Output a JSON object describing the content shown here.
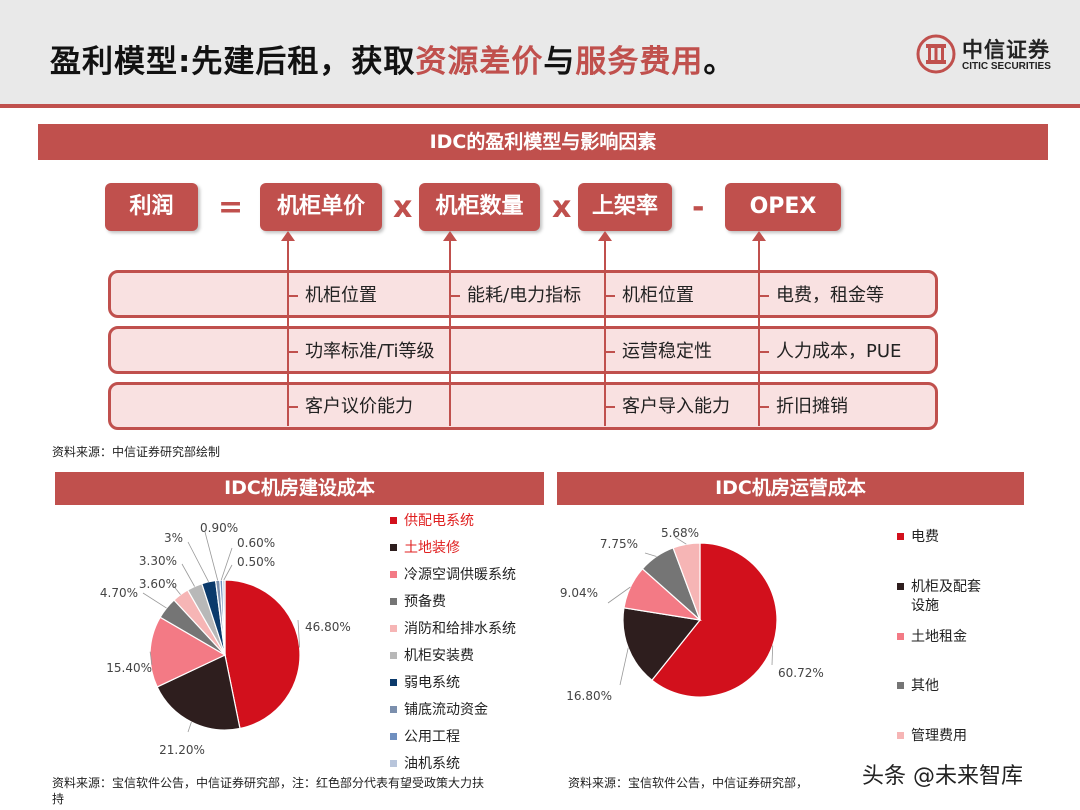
{
  "header": {
    "title_part1": "盈利模型:先建后租，获取",
    "title_hl1": "资源差价",
    "title_part2": "与",
    "title_hl2": "服务费用",
    "title_part3": "。",
    "logo_name": "中信证券",
    "logo_en": "CITIC SECURITIES"
  },
  "model": {
    "banner": "IDC的盈利模型与影响因素",
    "formula": [
      "利润",
      "机柜单价",
      "机柜数量",
      "上架率",
      "OPEX"
    ],
    "operators": [
      "=",
      "x",
      "x",
      "-"
    ],
    "col1": [
      "机柜位置",
      "功率标准/Ti等级",
      "客户议价能力"
    ],
    "col2": [
      "能耗/电力指标"
    ],
    "col3": [
      "机柜位置",
      "运营稳定性",
      "客户导入能力"
    ],
    "col4": [
      "电费，租金等",
      "人力成本，PUE",
      "折旧摊销"
    ],
    "source": "资料来源：中信证券研究部绘制"
  },
  "build_cost": {
    "banner": "IDC机房建设成本",
    "source_line1": "资料来源：宝信软件公告，中信证券研究部，注：红色部分代表有望受政策大力扶",
    "source_line2": "持"
  },
  "ops_cost": {
    "banner": "IDC机房运营成本",
    "source": "资料来源：宝信软件公告，中信证券研究部，"
  },
  "watermark": "头条 @未来智库",
  "colors": {
    "accent": "#c0504d",
    "highlight_text": "#e02020"
  },
  "chart_data": [
    {
      "type": "pie",
      "title": "IDC机房建设成本",
      "categories": [
        "供配电系统",
        "土地装修",
        "冷源空调供暖系统",
        "预备费",
        "消防和给排水系统",
        "机柜安装费",
        "弱电系统",
        "铺底流动资金",
        "公用工程",
        "油机系统"
      ],
      "values": [
        46.8,
        21.2,
        15.4,
        4.7,
        3.6,
        3.3,
        3,
        0.9,
        0.6,
        0.5
      ],
      "labels": [
        "46.80%",
        "21.20%",
        "15.40%",
        "4.70%",
        "3.60%",
        "3.30%",
        "3%",
        "0.90%",
        "0.60%",
        "0.50%"
      ],
      "colors": [
        "#d2101c",
        "#2e1e1e",
        "#f37a85",
        "#757575",
        "#f6b5b5",
        "#b8b8b8",
        "#0b3a6b",
        "#7b8fad",
        "#6f8fbf",
        "#b8c5db"
      ],
      "highlighted": [
        "供配电系统",
        "土地装修"
      ],
      "legend": "right"
    },
    {
      "type": "pie",
      "title": "IDC机房运营成本",
      "categories": [
        "电费",
        "机柜及配套设施",
        "土地租金",
        "其他",
        "管理费用"
      ],
      "legend_labels": [
        [
          "电费"
        ],
        [
          "机柜及配套",
          "设施"
        ],
        [
          "土地租金"
        ],
        [
          "其他"
        ],
        [
          "管理费用"
        ]
      ],
      "values": [
        60.72,
        16.8,
        9.04,
        7.75,
        5.68
      ],
      "labels": [
        "60.72%",
        "16.80%",
        "9.04%",
        "7.75%",
        "5.68%"
      ],
      "colors": [
        "#d2101c",
        "#2e1e1e",
        "#f37a85",
        "#757575",
        "#f6b5b5"
      ],
      "legend": "right"
    }
  ]
}
